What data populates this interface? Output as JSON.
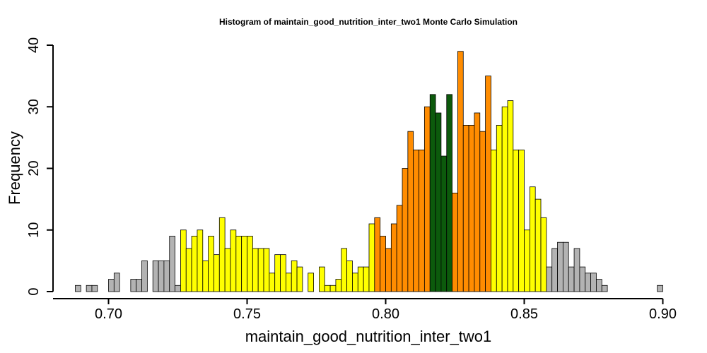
{
  "chart_data": {
    "type": "bar",
    "subtype": "histogram",
    "title": "Histogram of  maintain_good_nutrition_inter_two1  Monte Carlo Simulation",
    "xlabel": "maintain_good_nutrition_inter_two1",
    "ylabel": "Frequency",
    "xlim": [
      0.686,
      0.902
    ],
    "ylim": [
      0,
      40
    ],
    "x_ticks": [
      "0.70",
      "0.75",
      "0.80",
      "0.85",
      "0.90"
    ],
    "x_tick_values": [
      0.7,
      0.75,
      0.8,
      0.85,
      0.9
    ],
    "y_ticks": [
      "0",
      "10",
      "20",
      "30",
      "40"
    ],
    "y_tick_values": [
      0,
      10,
      20,
      30,
      40
    ],
    "bin_start": 0.688,
    "bin_width": 0.002,
    "colors": {
      "gray": "#b3b3b3",
      "yellow": "#ffff00",
      "orange": "#ff8c00",
      "green": "#0c5a0c",
      "border": "#000000"
    },
    "bins": [
      {
        "x0": 0.688,
        "count": 1,
        "color": "gray"
      },
      {
        "x0": 0.69,
        "count": 0,
        "color": "gray"
      },
      {
        "x0": 0.692,
        "count": 1,
        "color": "gray"
      },
      {
        "x0": 0.694,
        "count": 1,
        "color": "gray"
      },
      {
        "x0": 0.696,
        "count": 0,
        "color": "gray"
      },
      {
        "x0": 0.698,
        "count": 0,
        "color": "gray"
      },
      {
        "x0": 0.7,
        "count": 2,
        "color": "gray"
      },
      {
        "x0": 0.702,
        "count": 3,
        "color": "gray"
      },
      {
        "x0": 0.704,
        "count": 0,
        "color": "gray"
      },
      {
        "x0": 0.706,
        "count": 0,
        "color": "gray"
      },
      {
        "x0": 0.708,
        "count": 2,
        "color": "gray"
      },
      {
        "x0": 0.71,
        "count": 2,
        "color": "gray"
      },
      {
        "x0": 0.712,
        "count": 5,
        "color": "gray"
      },
      {
        "x0": 0.714,
        "count": 0,
        "color": "gray"
      },
      {
        "x0": 0.716,
        "count": 5,
        "color": "gray"
      },
      {
        "x0": 0.718,
        "count": 5,
        "color": "gray"
      },
      {
        "x0": 0.72,
        "count": 5,
        "color": "gray"
      },
      {
        "x0": 0.722,
        "count": 9,
        "color": "gray"
      },
      {
        "x0": 0.724,
        "count": 1,
        "color": "gray"
      },
      {
        "x0": 0.726,
        "count": 10,
        "color": "yellow"
      },
      {
        "x0": 0.728,
        "count": 7,
        "color": "yellow"
      },
      {
        "x0": 0.73,
        "count": 9,
        "color": "yellow"
      },
      {
        "x0": 0.732,
        "count": 10,
        "color": "yellow"
      },
      {
        "x0": 0.734,
        "count": 5,
        "color": "yellow"
      },
      {
        "x0": 0.736,
        "count": 9,
        "color": "yellow"
      },
      {
        "x0": 0.738,
        "count": 6,
        "color": "yellow"
      },
      {
        "x0": 0.74,
        "count": 12,
        "color": "yellow"
      },
      {
        "x0": 0.742,
        "count": 7,
        "color": "yellow"
      },
      {
        "x0": 0.744,
        "count": 10,
        "color": "yellow"
      },
      {
        "x0": 0.746,
        "count": 9,
        "color": "yellow"
      },
      {
        "x0": 0.748,
        "count": 9,
        "color": "yellow"
      },
      {
        "x0": 0.75,
        "count": 9,
        "color": "yellow"
      },
      {
        "x0": 0.752,
        "count": 7,
        "color": "yellow"
      },
      {
        "x0": 0.754,
        "count": 7,
        "color": "yellow"
      },
      {
        "x0": 0.756,
        "count": 7,
        "color": "yellow"
      },
      {
        "x0": 0.758,
        "count": 3,
        "color": "yellow"
      },
      {
        "x0": 0.76,
        "count": 6,
        "color": "yellow"
      },
      {
        "x0": 0.762,
        "count": 6,
        "color": "yellow"
      },
      {
        "x0": 0.764,
        "count": 3,
        "color": "yellow"
      },
      {
        "x0": 0.766,
        "count": 5,
        "color": "yellow"
      },
      {
        "x0": 0.768,
        "count": 4,
        "color": "yellow"
      },
      {
        "x0": 0.77,
        "count": 0,
        "color": "yellow"
      },
      {
        "x0": 0.772,
        "count": 3,
        "color": "yellow"
      },
      {
        "x0": 0.774,
        "count": 0,
        "color": "yellow"
      },
      {
        "x0": 0.776,
        "count": 4,
        "color": "yellow"
      },
      {
        "x0": 0.778,
        "count": 1,
        "color": "yellow"
      },
      {
        "x0": 0.78,
        "count": 1,
        "color": "yellow"
      },
      {
        "x0": 0.782,
        "count": 2,
        "color": "yellow"
      },
      {
        "x0": 0.784,
        "count": 7,
        "color": "yellow"
      },
      {
        "x0": 0.786,
        "count": 5,
        "color": "yellow"
      },
      {
        "x0": 0.788,
        "count": 3,
        "color": "yellow"
      },
      {
        "x0": 0.79,
        "count": 4,
        "color": "yellow"
      },
      {
        "x0": 0.792,
        "count": 4,
        "color": "yellow"
      },
      {
        "x0": 0.794,
        "count": 11,
        "color": "yellow"
      },
      {
        "x0": 0.796,
        "count": 12,
        "color": "orange"
      },
      {
        "x0": 0.798,
        "count": 9,
        "color": "orange"
      },
      {
        "x0": 0.8,
        "count": 7,
        "color": "orange"
      },
      {
        "x0": 0.802,
        "count": 11,
        "color": "orange"
      },
      {
        "x0": 0.804,
        "count": 14,
        "color": "orange"
      },
      {
        "x0": 0.806,
        "count": 20,
        "color": "orange"
      },
      {
        "x0": 0.808,
        "count": 26,
        "color": "orange"
      },
      {
        "x0": 0.81,
        "count": 23,
        "color": "orange"
      },
      {
        "x0": 0.812,
        "count": 23,
        "color": "orange"
      },
      {
        "x0": 0.814,
        "count": 30,
        "color": "orange"
      },
      {
        "x0": 0.816,
        "count": 32,
        "color": "green"
      },
      {
        "x0": 0.818,
        "count": 29,
        "color": "green"
      },
      {
        "x0": 0.82,
        "count": 22,
        "color": "green"
      },
      {
        "x0": 0.822,
        "count": 32,
        "color": "green"
      },
      {
        "x0": 0.824,
        "count": 16,
        "color": "orange"
      },
      {
        "x0": 0.826,
        "count": 39,
        "color": "orange"
      },
      {
        "x0": 0.828,
        "count": 27,
        "color": "orange"
      },
      {
        "x0": 0.83,
        "count": 27,
        "color": "orange"
      },
      {
        "x0": 0.832,
        "count": 29,
        "color": "orange"
      },
      {
        "x0": 0.834,
        "count": 26,
        "color": "orange"
      },
      {
        "x0": 0.836,
        "count": 35,
        "color": "orange"
      },
      {
        "x0": 0.838,
        "count": 23,
        "color": "yellow"
      },
      {
        "x0": 0.84,
        "count": 27,
        "color": "yellow"
      },
      {
        "x0": 0.842,
        "count": 30,
        "color": "yellow"
      },
      {
        "x0": 0.844,
        "count": 31,
        "color": "yellow"
      },
      {
        "x0": 0.846,
        "count": 23,
        "color": "yellow"
      },
      {
        "x0": 0.848,
        "count": 23,
        "color": "yellow"
      },
      {
        "x0": 0.85,
        "count": 10,
        "color": "yellow"
      },
      {
        "x0": 0.852,
        "count": 17,
        "color": "yellow"
      },
      {
        "x0": 0.854,
        "count": 15,
        "color": "yellow"
      },
      {
        "x0": 0.856,
        "count": 12,
        "color": "yellow"
      },
      {
        "x0": 0.858,
        "count": 4,
        "color": "gray"
      },
      {
        "x0": 0.86,
        "count": 7,
        "color": "gray"
      },
      {
        "x0": 0.862,
        "count": 8,
        "color": "gray"
      },
      {
        "x0": 0.864,
        "count": 8,
        "color": "gray"
      },
      {
        "x0": 0.866,
        "count": 4,
        "color": "gray"
      },
      {
        "x0": 0.868,
        "count": 7,
        "color": "gray"
      },
      {
        "x0": 0.87,
        "count": 4,
        "color": "gray"
      },
      {
        "x0": 0.872,
        "count": 3,
        "color": "gray"
      },
      {
        "x0": 0.874,
        "count": 3,
        "color": "gray"
      },
      {
        "x0": 0.876,
        "count": 2,
        "color": "gray"
      },
      {
        "x0": 0.878,
        "count": 1,
        "color": "gray"
      },
      {
        "x0": 0.88,
        "count": 0,
        "color": "gray"
      },
      {
        "x0": 0.882,
        "count": 0,
        "color": "gray"
      },
      {
        "x0": 0.884,
        "count": 0,
        "color": "gray"
      },
      {
        "x0": 0.886,
        "count": 0,
        "color": "gray"
      },
      {
        "x0": 0.888,
        "count": 0,
        "color": "gray"
      },
      {
        "x0": 0.89,
        "count": 0,
        "color": "gray"
      },
      {
        "x0": 0.892,
        "count": 0,
        "color": "gray"
      },
      {
        "x0": 0.894,
        "count": 0,
        "color": "gray"
      },
      {
        "x0": 0.896,
        "count": 0,
        "color": "gray"
      },
      {
        "x0": 0.898,
        "count": 1,
        "color": "gray"
      }
    ]
  }
}
